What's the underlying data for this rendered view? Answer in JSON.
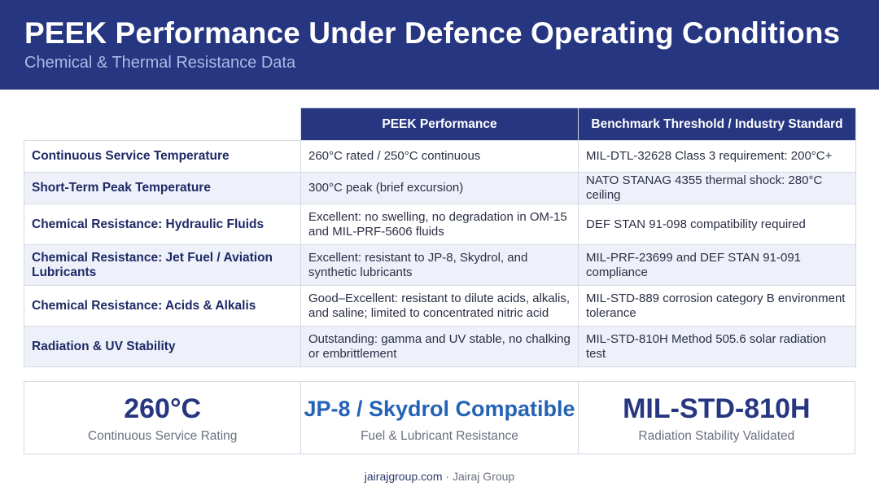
{
  "header": {
    "title": "PEEK Performance Under Defence Operating Conditions",
    "subtitle": "Chemical & Thermal Resistance Data"
  },
  "table": {
    "columns": [
      "",
      "PEEK Performance",
      "Benchmark Threshold / Industry Standard"
    ],
    "rows": [
      {
        "label": "Continuous Service Temperature",
        "peek": "260°C rated / 250°C continuous",
        "benchmark": "MIL-DTL-32628 Class 3 requirement: 200°C+"
      },
      {
        "label": "Short-Term Peak Temperature",
        "peek": "300°C peak (brief excursion)",
        "benchmark": "NATO STANAG 4355 thermal shock: 280°C ceiling"
      },
      {
        "label": "Chemical Resistance: Hydraulic Fluids",
        "peek": "Excellent: no swelling, no degradation in OM-15 and MIL-PRF-5606 fluids",
        "benchmark": "DEF STAN 91-098 compatibility required"
      },
      {
        "label": "Chemical Resistance: Jet Fuel / Aviation Lubricants",
        "peek": "Excellent: resistant to JP-8, Skydrol, and synthetic lubricants",
        "benchmark": "MIL-PRF-23699 and DEF STAN 91-091 compliance"
      },
      {
        "label": "Chemical Resistance: Acids & Alkalis",
        "peek": "Good–Excellent: resistant to dilute acids, alkalis, and saline; limited to concentrated nitric acid",
        "benchmark": "MIL-STD-889 corrosion category B environment tolerance"
      },
      {
        "label": "Radiation & UV Stability",
        "peek": "Outstanding: gamma and UV stable, no chalking or embrittlement",
        "benchmark": "MIL-STD-810H Method 505.6 solar radiation test"
      }
    ]
  },
  "stats": [
    {
      "value": "260°C",
      "caption": "Continuous Service Rating"
    },
    {
      "value": "JP-8 / Skydrol Compatible",
      "caption": "Fuel & Lubricant Resistance"
    },
    {
      "value": "MIL-STD-810H",
      "caption": "Radiation Stability Validated"
    }
  ],
  "footer": {
    "site": "jairajgroup.com",
    "separator": " · ",
    "company": "Jairaj Group"
  },
  "colors": {
    "header_bg": "#263681",
    "accent_blue": "#2463b6",
    "alt_row": "#eef1f9"
  }
}
